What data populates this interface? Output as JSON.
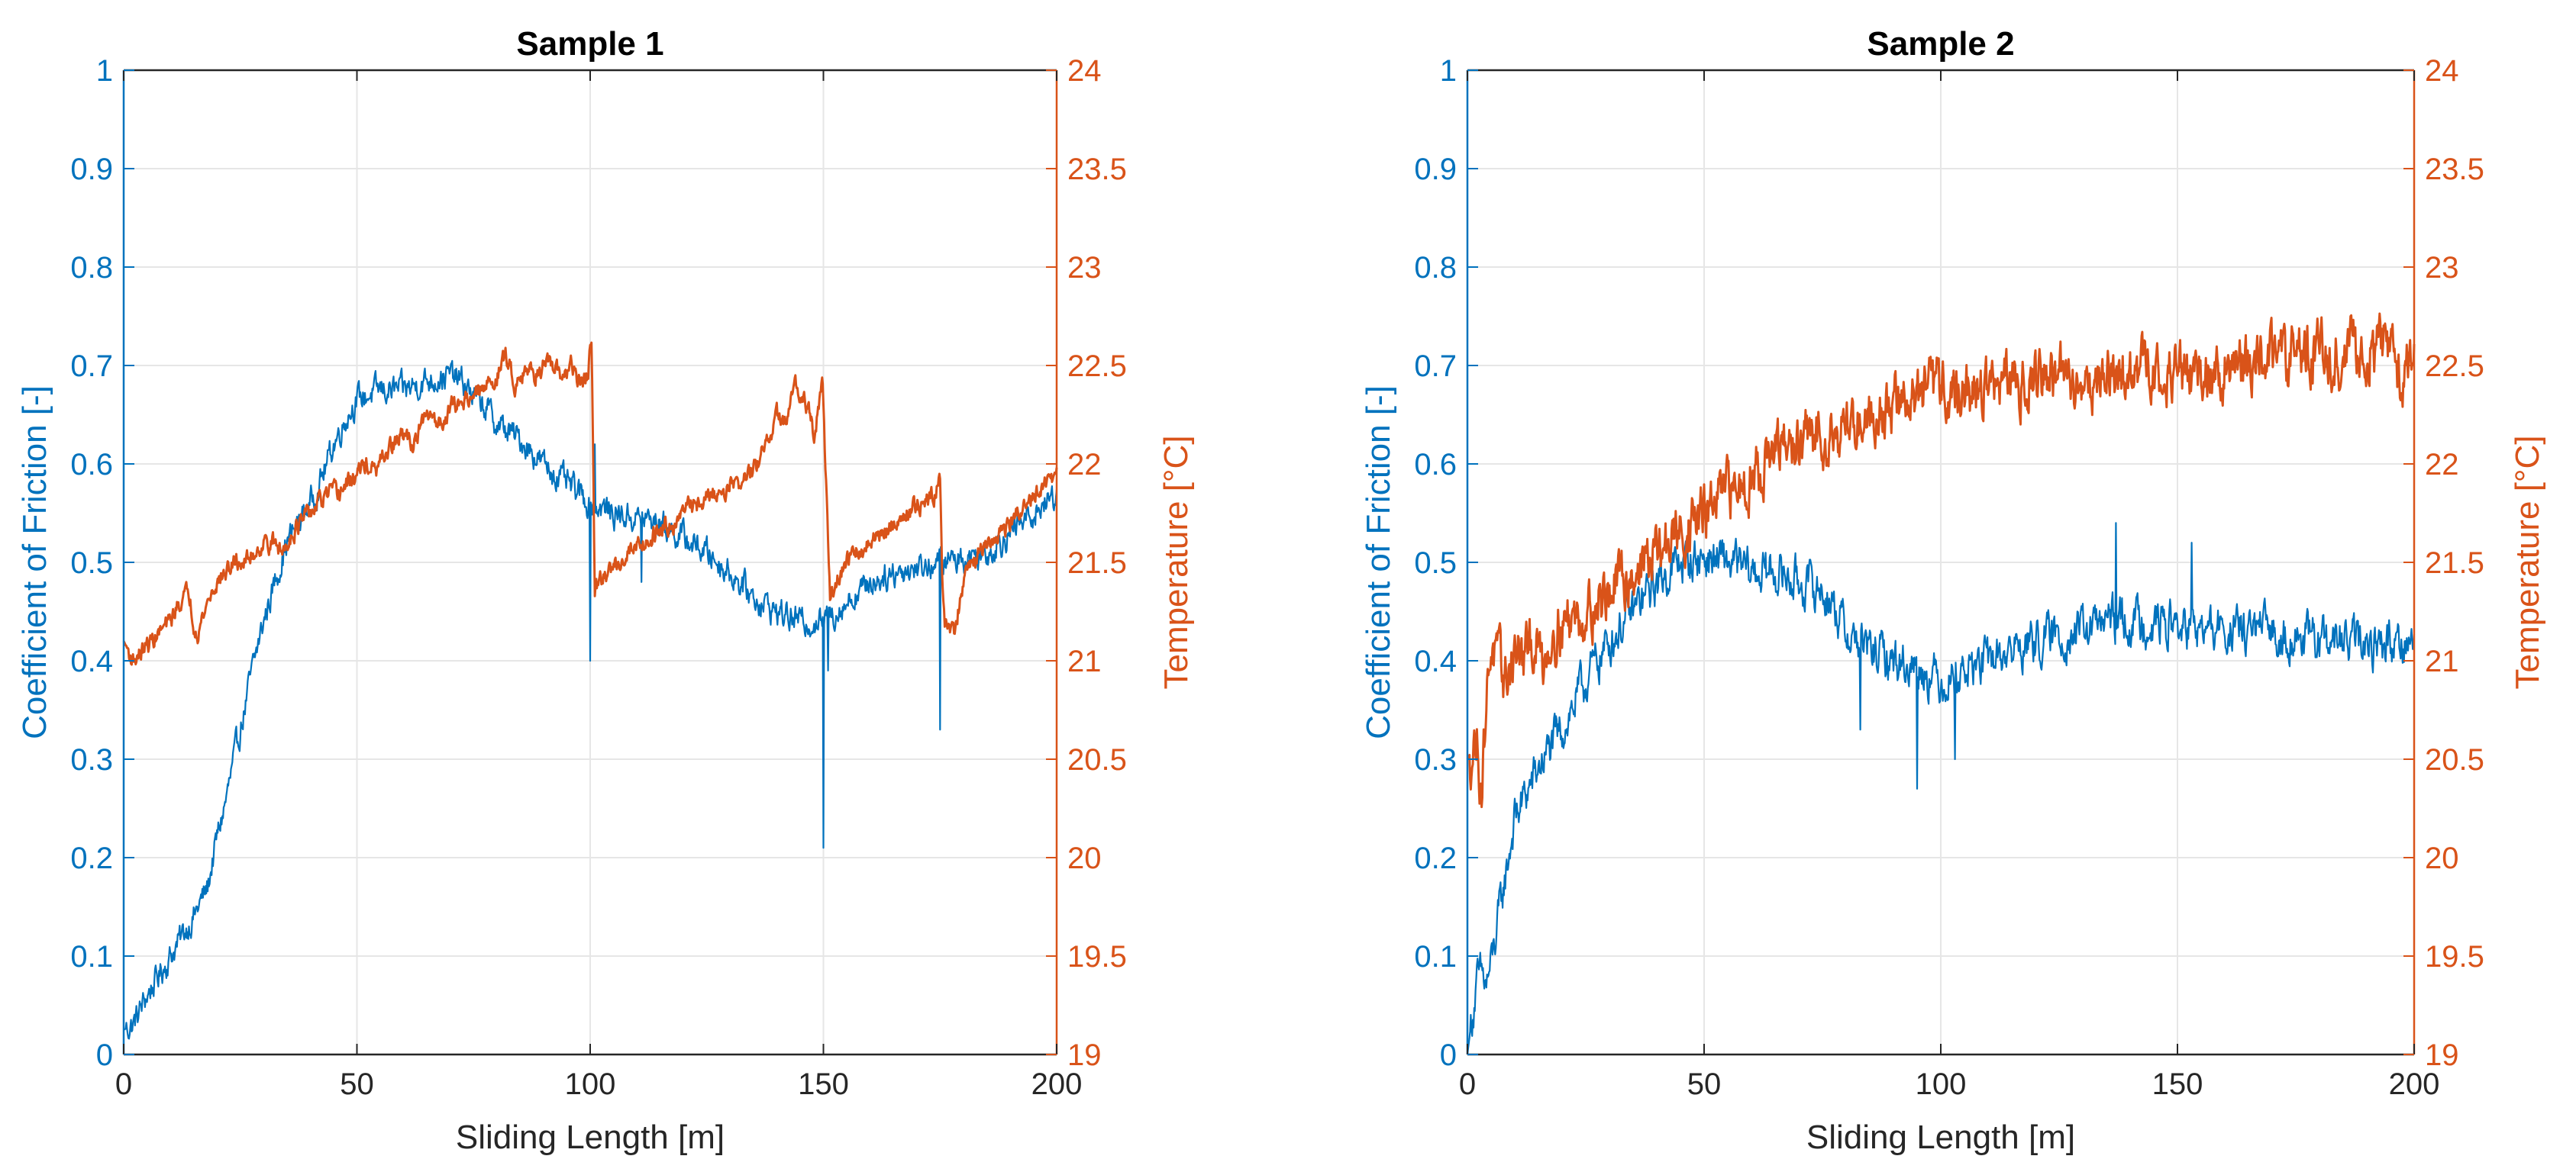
{
  "colors": {
    "cof": "#0072BD",
    "temperature": "#D95319",
    "grid": "#E6E6E6",
    "axis": "#262626"
  },
  "chart_data": [
    {
      "type": "line",
      "title": "Sample 1",
      "xlabel": "Sliding Length [m]",
      "ylabel_left": "Coefficient of Friction [-]",
      "ylabel_right": "Temperature [°C]",
      "xlim": [
        0,
        200
      ],
      "ylim_left": [
        0,
        1
      ],
      "ylim_right": [
        19,
        24
      ],
      "xticks": [
        0,
        50,
        100,
        150,
        200
      ],
      "yticks_left": [
        0,
        0.1,
        0.2,
        0.3,
        0.4,
        0.5,
        0.6,
        0.7,
        0.8,
        0.9,
        1
      ],
      "yticks_right": [
        19,
        19.5,
        20,
        20.5,
        21,
        21.5,
        22,
        22.5,
        23,
        23.5,
        24
      ],
      "grid": true,
      "series": [
        {
          "name": "Coefficient of Friction",
          "axis": "left",
          "noise": 0.022,
          "x": [
            0,
            2,
            5,
            10,
            15,
            18,
            20,
            22,
            25,
            28,
            30,
            33,
            35,
            38,
            40,
            42,
            45,
            48,
            50,
            55,
            60,
            65,
            70,
            72,
            75,
            78,
            80,
            85,
            90,
            95,
            100,
            105,
            110,
            115,
            120,
            125,
            130,
            135,
            140,
            145,
            150,
            155,
            160,
            165,
            170,
            175,
            180,
            185,
            190,
            195,
            200
          ],
          "y": [
            0.025,
            0.03,
            0.06,
            0.1,
            0.14,
            0.17,
            0.22,
            0.26,
            0.33,
            0.4,
            0.44,
            0.49,
            0.52,
            0.545,
            0.56,
            0.58,
            0.62,
            0.65,
            0.665,
            0.675,
            0.675,
            0.685,
            0.69,
            0.685,
            0.67,
            0.655,
            0.64,
            0.625,
            0.6,
            0.58,
            0.56,
            0.55,
            0.545,
            0.54,
            0.525,
            0.51,
            0.49,
            0.465,
            0.45,
            0.44,
            0.44,
            0.46,
            0.48,
            0.49,
            0.495,
            0.5,
            0.505,
            0.51,
            0.53,
            0.55,
            0.57
          ],
          "spikes": [
            [
              100,
              0.4
            ],
            [
              101,
              0.62
            ],
            [
              150,
              0.21
            ],
            [
              151,
              0.39
            ],
            [
              175,
              0.33
            ],
            [
              111,
              0.48
            ]
          ]
        },
        {
          "name": "Temperature",
          "axis": "right",
          "noise": 0.015,
          "x": [
            0,
            2,
            4,
            6,
            8,
            10,
            12,
            14,
            15,
            16,
            18,
            20,
            22,
            24,
            26,
            28,
            30,
            32,
            34,
            36,
            38,
            40,
            42,
            44,
            46,
            48,
            50,
            52,
            54,
            56,
            58,
            60,
            62,
            64,
            66,
            68,
            70,
            72,
            74,
            76,
            78,
            80,
            82,
            84,
            86,
            88,
            90,
            92,
            94,
            96,
            98,
            99.5,
            100.3,
            101,
            102,
            104,
            106,
            108,
            110,
            112,
            114,
            116,
            118,
            120,
            122,
            124,
            126,
            128,
            130,
            132,
            134,
            136,
            138,
            140,
            142,
            144,
            146,
            148,
            149.8,
            150.5,
            151.5,
            153,
            155,
            157,
            160,
            163,
            165,
            168,
            170,
            172,
            174,
            175,
            175.5,
            176,
            178,
            180,
            182,
            184,
            186,
            188,
            190,
            192,
            194,
            196,
            198,
            200
          ],
          "y": [
            21.1,
            21.0,
            21.05,
            21.1,
            21.15,
            21.2,
            21.3,
            21.35,
            21.2,
            21.15,
            21.3,
            21.4,
            21.45,
            21.5,
            21.5,
            21.55,
            21.6,
            21.6,
            21.55,
            21.65,
            21.7,
            21.75,
            21.8,
            21.85,
            21.85,
            21.9,
            21.95,
            22.0,
            21.95,
            22.05,
            22.1,
            22.15,
            22.1,
            22.2,
            22.25,
            22.2,
            22.3,
            22.3,
            22.35,
            22.35,
            22.4,
            22.45,
            22.55,
            22.4,
            22.5,
            22.45,
            22.5,
            22.48,
            22.45,
            22.5,
            22.4,
            22.45,
            22.65,
            21.35,
            21.4,
            21.45,
            21.5,
            21.55,
            21.6,
            21.6,
            21.65,
            21.7,
            21.7,
            21.75,
            21.8,
            21.8,
            21.85,
            21.85,
            21.9,
            21.9,
            21.95,
            22.0,
            22.1,
            22.25,
            22.2,
            22.4,
            22.35,
            22.15,
            22.4,
            21.95,
            21.3,
            21.4,
            21.5,
            21.55,
            21.6,
            21.65,
            21.7,
            21.75,
            21.8,
            21.8,
            21.85,
            21.95,
            21.4,
            21.2,
            21.15,
            21.4,
            21.5,
            21.55,
            21.6,
            21.65,
            21.7,
            21.75,
            21.8,
            21.85,
            21.9,
            21.95
          ]
        }
      ]
    },
    {
      "type": "line",
      "title": "Sample 2",
      "xlabel": "Sliding Length [m]",
      "ylabel_left": "Coefficient of Friction [-]",
      "ylabel_right": "Temperature [°C]",
      "xlim": [
        0,
        200
      ],
      "ylim_left": [
        0,
        1
      ],
      "ylim_right": [
        19,
        24
      ],
      "xticks": [
        0,
        50,
        100,
        150,
        200
      ],
      "yticks_left": [
        0,
        0.1,
        0.2,
        0.3,
        0.4,
        0.5,
        0.6,
        0.7,
        0.8,
        0.9,
        1
      ],
      "yticks_right": [
        19,
        19.5,
        20,
        20.5,
        21,
        21.5,
        22,
        22.5,
        23,
        23.5,
        24
      ],
      "grid": true,
      "series": [
        {
          "name": "Coefficient of Friction",
          "axis": "left",
          "noise": 0.035,
          "x": [
            0,
            1,
            2,
            3,
            4,
            5,
            6,
            8,
            10,
            13,
            16,
            20,
            25,
            30,
            35,
            40,
            45,
            50,
            55,
            60,
            65,
            70,
            75,
            77,
            80,
            85,
            90,
            95,
            100,
            105,
            110,
            115,
            120,
            125,
            130,
            135,
            140,
            145,
            150,
            155,
            160,
            165,
            170,
            175,
            180,
            185,
            190,
            195,
            200
          ],
          "y": [
            0.0,
            0.04,
            0.07,
            0.08,
            0.07,
            0.09,
            0.12,
            0.18,
            0.24,
            0.27,
            0.3,
            0.33,
            0.38,
            0.42,
            0.45,
            0.48,
            0.5,
            0.505,
            0.5,
            0.49,
            0.49,
            0.48,
            0.47,
            0.46,
            0.43,
            0.41,
            0.4,
            0.395,
            0.38,
            0.39,
            0.4,
            0.41,
            0.42,
            0.425,
            0.43,
            0.44,
            0.44,
            0.44,
            0.435,
            0.43,
            0.43,
            0.43,
            0.43,
            0.425,
            0.42,
            0.42,
            0.415,
            0.42,
            0.42
          ],
          "spikes": [
            [
              95,
              0.27
            ],
            [
              103,
              0.3
            ],
            [
              137,
              0.54
            ],
            [
              153,
              0.52
            ],
            [
              83,
              0.33
            ]
          ]
        },
        {
          "name": "Temperature",
          "axis": "right",
          "noise": 0.045,
          "x": [
            0,
            2,
            3,
            4,
            5,
            6,
            8,
            10,
            12,
            14,
            16,
            18,
            20,
            25,
            30,
            35,
            40,
            45,
            50,
            55,
            60,
            65,
            70,
            75,
            80,
            85,
            90,
            95,
            100,
            105,
            110,
            115,
            120,
            125,
            130,
            135,
            140,
            145,
            150,
            155,
            160,
            165,
            170,
            175,
            180,
            185,
            190,
            195,
            197,
            200
          ],
          "y": [
            20.5,
            20.6,
            20.35,
            20.8,
            21.1,
            21.0,
            20.9,
            21.05,
            21.0,
            21.1,
            21.0,
            21.15,
            21.2,
            21.25,
            21.35,
            21.45,
            21.55,
            21.65,
            21.75,
            21.85,
            21.95,
            22.05,
            22.1,
            22.15,
            22.2,
            22.25,
            22.3,
            22.35,
            22.4,
            22.35,
            22.4,
            22.4,
            22.45,
            22.45,
            22.4,
            22.45,
            22.45,
            22.5,
            22.45,
            22.45,
            22.5,
            22.5,
            22.55,
            22.55,
            22.6,
            22.55,
            22.6,
            22.6,
            22.45,
            22.55
          ]
        }
      ]
    }
  ]
}
